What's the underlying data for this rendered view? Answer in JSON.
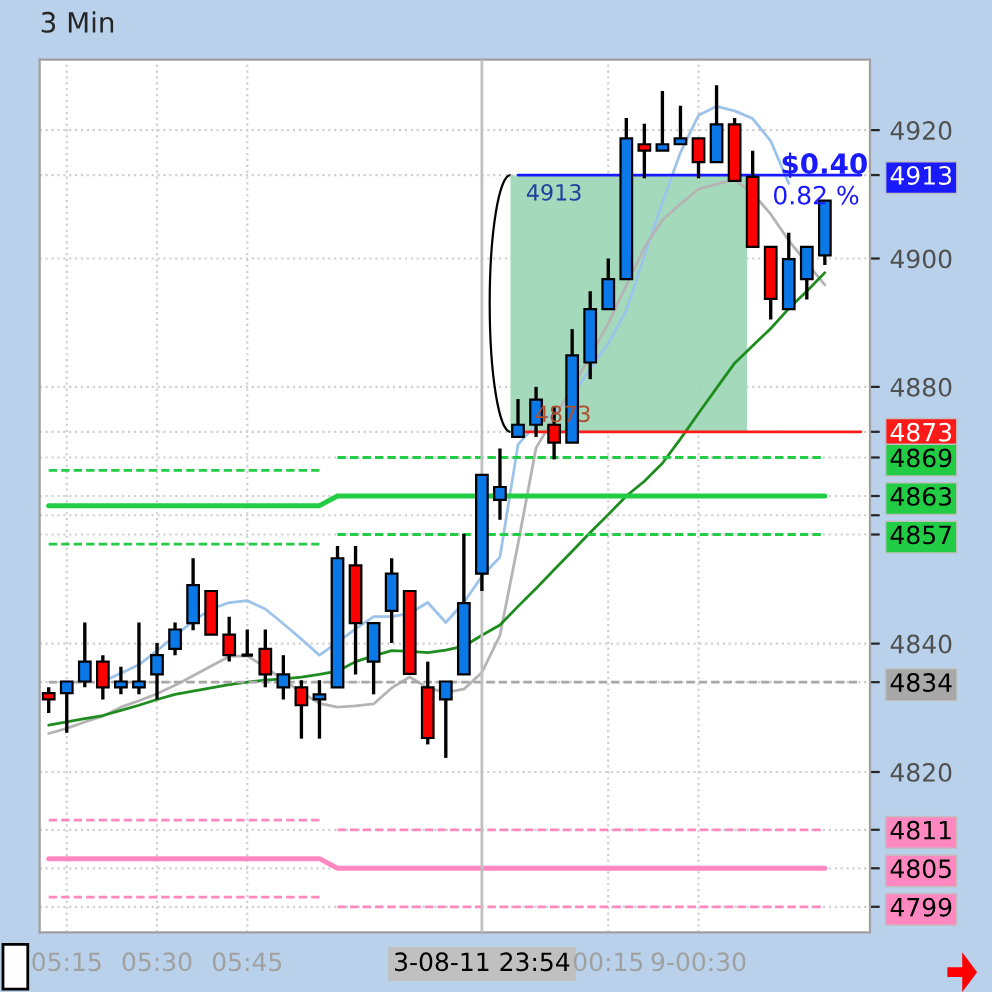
{
  "chart_data": {
    "type": "candlestick",
    "title": "3 Min",
    "categories": [
      null,
      "05:15",
      null,
      null,
      null,
      null,
      "05:30",
      null,
      null,
      null,
      null,
      "05:45",
      null,
      null,
      null,
      null,
      null,
      null,
      null,
      null,
      null,
      null,
      null,
      null,
      "3-08-11 23:54",
      null,
      null,
      null,
      null,
      null,
      null,
      "00:15",
      null,
      null,
      null,
      null,
      "9-00:30",
      null,
      null,
      null,
      null,
      null,
      null,
      null,
      null,
      null
    ],
    "ohlc": [
      [
        4832.3,
        4833.2,
        4829.2,
        4831.3
      ],
      [
        4832.3,
        4834.1,
        4826.1,
        4834.1
      ],
      [
        4834.1,
        4843.3,
        4833.2,
        4837.2
      ],
      [
        4837.2,
        4838.2,
        4831.3,
        4833.2
      ],
      [
        4833.2,
        4836.4,
        4832.1,
        4834.1
      ],
      [
        4833.2,
        4843.3,
        4832.1,
        4834.1
      ],
      [
        4835.2,
        4840.1,
        4831.3,
        4838.2
      ],
      [
        4839.2,
        4843.3,
        4838.2,
        4842.2
      ],
      [
        4843.2,
        4853.3,
        4842.1,
        4849.1
      ],
      [
        4848.2,
        4848.2,
        4841.4,
        4841.4
      ],
      [
        4841.4,
        4844.2,
        4837.2,
        4838.2
      ],
      [
        4838.2,
        4842.2,
        4838.2,
        4838.2
      ],
      [
        4839.2,
        4842.2,
        4833.2,
        4835.2
      ],
      [
        4833.2,
        4838.2,
        4831.3,
        4835.2
      ],
      [
        4833.2,
        4834.3,
        4825.2,
        4830.4
      ],
      [
        4831.3,
        4834.3,
        4825.2,
        4832.1
      ],
      [
        4833.2,
        4855.2,
        4833.2,
        4853.3
      ],
      [
        4852.2,
        4855.2,
        4835.2,
        4843.2
      ],
      [
        4837.2,
        4843.2,
        4832.1,
        4843.2
      ],
      [
        4845.1,
        4853.3,
        4840.1,
        4850.9
      ],
      [
        4848.2,
        4848.2,
        4835.3,
        4835.3
      ],
      [
        4833.2,
        4837.2,
        4824.3,
        4825.3
      ],
      [
        4831.3,
        4834.1,
        4822.2,
        4834.1
      ],
      [
        4835.2,
        4857.1,
        4835.2,
        4846.3
      ],
      [
        4850.9,
        4866.3,
        4848.2,
        4866.3
      ],
      [
        4862.4,
        4870.4,
        4859.3,
        4864.4
      ],
      [
        4872.2,
        4878.1,
        4872.2,
        4874.1
      ],
      [
        4874.1,
        4880.0,
        4872.2,
        4878.0
      ],
      [
        4874.1,
        4877.0,
        4868.7,
        4871.3
      ],
      [
        4871.3,
        4889.0,
        4871.3,
        4884.9
      ],
      [
        4883.8,
        4894.9,
        4881.2,
        4892.1
      ],
      [
        4892.1,
        4900.0,
        4892.1,
        4896.8
      ],
      [
        4896.8,
        4921.9,
        4896.8,
        4918.7
      ],
      [
        4917.8,
        4921.0,
        4912.5,
        4916.8
      ],
      [
        4916.8,
        4926.1,
        4916.8,
        4917.8
      ],
      [
        4917.8,
        4923.8,
        4917.8,
        4918.7
      ],
      [
        4918.7,
        4918.7,
        4912.5,
        4915.0
      ],
      [
        4915.0,
        4927.0,
        4915.0,
        4920.9
      ],
      [
        4920.9,
        4921.9,
        4912.1,
        4912.1
      ],
      [
        4912.7,
        4916.8,
        4901.8,
        4901.8
      ],
      [
        4901.8,
        4901.8,
        4890.5,
        4893.7
      ],
      [
        4892.1,
        4904.0,
        4892.1,
        4899.9
      ],
      [
        4896.8,
        4901.8,
        4893.6,
        4901.8
      ],
      [
        4900.5,
        4909.0,
        4899.0,
        4909.0
      ],
      null,
      null
    ],
    "colors": [
      "#ff0000",
      "#0a78e6",
      "#0a78e6",
      "#ff0000",
      "#0a78e6",
      "#0a78e6",
      "#0a78e6",
      "#0a78e6",
      "#0a78e6",
      "#ff0000",
      "#ff0000",
      "#000000",
      "#ff0000",
      "#0a78e6",
      "#ff0000",
      "#0a78e6",
      "#0a78e6",
      "#ff0000",
      "#0a78e6",
      "#0a78e6",
      "#ff0000",
      "#ff0000",
      "#0a78e6",
      "#0a78e6",
      "#0a78e6",
      "#0a78e6",
      "#0a78e6",
      "#0a78e6",
      "#ff0000",
      "#0a78e6",
      "#0a78e6",
      "#0a78e6",
      "#0a78e6",
      "#ff0000",
      "#0a78e6",
      "#0a78e6",
      "#ff0000",
      "#0a78e6",
      "#ff0000",
      "#ff0000",
      "#ff0000",
      "#0a78e6",
      "#0a78e6",
      "#0a78e6",
      null,
      null
    ],
    "series": [
      {
        "type": "line",
        "color": "#9cc3ea",
        "values": [
          null,
          null,
          null,
          4834.1,
          4835.4,
          4836.7,
          4838.9,
          4841.2,
          4843.5,
          4845.4,
          4846.4,
          4846.7,
          4845.4,
          4843.1,
          4840.7,
          4838.2,
          4840.2,
          4842.3,
          4844.2,
          4844.2,
          4844.7,
          4846.4,
          4843.3,
          4846.4,
          4850.5,
          4853.5,
          4871.0,
          4874.2,
          4875.9,
          4878.6,
          4882.8,
          4886.8,
          4891.9,
          4900.4,
          4908.7,
          4916.5,
          4922.3,
          4923.7,
          4923.0,
          4921.8,
          4918.3,
          4911.7,
          null,
          null,
          null,
          null
        ]
      },
      {
        "type": "line",
        "color": "#b4b4b4",
        "values": [
          4826.0,
          4826.8,
          4827.8,
          4828.7,
          4830.1,
          4831.1,
          4832.2,
          4833.5,
          4835.0,
          4836.5,
          4838.0,
          4838.1,
          4836.3,
          4834.4,
          4832.4,
          4830.7,
          4830.1,
          4830.3,
          4830.6,
          4833.1,
          4834.8,
          4833.1,
          4832.4,
          4832.9,
          4835.5,
          4841.3,
          4855.5,
          4870.5,
          4875.2,
          4880.0,
          4884.7,
          4889.9,
          4895.8,
          4901.7,
          4906.0,
          4908.5,
          4910.8,
          4911.6,
          4912.3,
          4910.2,
          4906.9,
          4902.8,
          4899.3,
          4895.9,
          null,
          null
        ]
      },
      {
        "type": "line",
        "color": "#1e8c1e",
        "values": [
          4827.3,
          4827.8,
          4828.3,
          4828.8,
          4829.6,
          4830.4,
          4831.3,
          4832.1,
          4832.6,
          4833.1,
          4833.6,
          4834.0,
          4834.3,
          4834.5,
          4834.8,
          4835.2,
          4835.7,
          4837.2,
          4838.1,
          4838.9,
          4838.8,
          4838.6,
          4839.0,
          4839.6,
          4841.3,
          4842.9,
          4845.8,
          4848.6,
          4851.5,
          4854.4,
          4857.3,
          4860.1,
          4863.0,
          4865.3,
          4868.1,
          4871.9,
          4875.9,
          4879.8,
          4883.7,
          4886.4,
          4889.1,
          4892.2,
          4894.9,
          4897.8,
          null,
          null
        ]
      },
      {
        "type": "line",
        "color": "#22cc44",
        "line_style": "dashed",
        "values": [
          4867,
          4867,
          4867,
          4867,
          4867,
          4867,
          4867,
          4867,
          4867,
          4867,
          4867,
          4867,
          4867,
          4867,
          4867,
          4867,
          null,
          null,
          null,
          null,
          null,
          null,
          null,
          null,
          null,
          null,
          null,
          null,
          null,
          null,
          null,
          null,
          null,
          null,
          null,
          null,
          null,
          null,
          null,
          null,
          null,
          null,
          null,
          null,
          null,
          null
        ]
      },
      {
        "type": "line",
        "color": "#22cc44",
        "line_style": "dashed",
        "values": [
          null,
          null,
          null,
          null,
          null,
          null,
          null,
          null,
          null,
          null,
          null,
          null,
          null,
          null,
          null,
          null,
          4869,
          4869,
          4869,
          4869,
          4869,
          4869,
          4869,
          4869,
          4869,
          4869,
          4869,
          4869,
          4869,
          4869,
          4869,
          4869,
          4869,
          4869,
          4869,
          4869,
          4869,
          4869,
          4869,
          4869,
          4869,
          4869,
          4869,
          4869,
          null,
          null
        ]
      },
      {
        "type": "line",
        "color": "#22cc44",
        "values": [
          4861.5,
          4861.5,
          4861.5,
          4861.5,
          4861.5,
          4861.5,
          4861.5,
          4861.5,
          4861.5,
          4861.5,
          4861.5,
          4861.5,
          4861.5,
          4861.5,
          4861.5,
          4861.5,
          4863,
          4863,
          4863,
          4863,
          4863,
          4863,
          4863,
          4863,
          4863,
          4863,
          4863,
          4863,
          4863,
          4863,
          4863,
          4863,
          4863,
          4863,
          4863,
          4863,
          4863,
          4863,
          4863,
          4863,
          4863,
          4863,
          4863,
          4863,
          null,
          null
        ]
      },
      {
        "type": "line",
        "color": "#22cc44",
        "line_style": "dashed",
        "values": [
          4855.5,
          4855.5,
          4855.5,
          4855.5,
          4855.5,
          4855.5,
          4855.5,
          4855.5,
          4855.5,
          4855.5,
          4855.5,
          4855.5,
          4855.5,
          4855.5,
          4855.5,
          4855.5,
          null,
          null,
          null,
          null,
          null,
          null,
          null,
          null,
          null,
          null,
          null,
          null,
          null,
          null,
          null,
          null,
          null,
          null,
          null,
          null,
          null,
          null,
          null,
          null,
          null,
          null,
          null,
          null,
          null,
          null
        ]
      },
      {
        "type": "line",
        "color": "#22cc44",
        "line_style": "dashed",
        "values": [
          null,
          null,
          null,
          null,
          null,
          null,
          null,
          null,
          null,
          null,
          null,
          null,
          null,
          null,
          null,
          null,
          4857,
          4857,
          4857,
          4857,
          4857,
          4857,
          4857,
          4857,
          4857,
          4857,
          4857,
          4857,
          4857,
          4857,
          4857,
          4857,
          4857,
          4857,
          4857,
          4857,
          4857,
          4857,
          4857,
          4857,
          4857,
          4857,
          4857,
          4857,
          null,
          null
        ]
      },
      {
        "type": "line",
        "color": "#a8a8a8",
        "line_style": "dashed",
        "values": [
          4834,
          4834,
          4834,
          4834,
          4834,
          4834,
          4834,
          4834,
          4834,
          4834,
          4834,
          4834,
          4834,
          4834,
          4834,
          4834,
          4834,
          4834,
          4834,
          4834,
          4834,
          4834,
          4834,
          4834,
          4834,
          4834,
          4834,
          4834,
          4834,
          4834,
          4834,
          4834,
          4834,
          4834,
          4834,
          4834,
          4834,
          4834,
          4834,
          4834,
          4834,
          4834,
          4834,
          4834,
          4834,
          4834
        ]
      },
      {
        "type": "line",
        "color": "#ff88c0",
        "line_style": "dashed",
        "values": [
          4812.5,
          4812.5,
          4812.5,
          4812.5,
          4812.5,
          4812.5,
          4812.5,
          4812.5,
          4812.5,
          4812.5,
          4812.5,
          4812.5,
          4812.5,
          4812.5,
          4812.5,
          4812.5,
          null,
          null,
          null,
          null,
          null,
          null,
          null,
          null,
          null,
          null,
          null,
          null,
          null,
          null,
          null,
          null,
          null,
          null,
          null,
          null,
          null,
          null,
          null,
          null,
          null,
          null,
          null,
          null,
          null,
          null
        ]
      },
      {
        "type": "line",
        "color": "#ff88c0",
        "line_style": "dashed",
        "values": [
          null,
          null,
          null,
          null,
          null,
          null,
          null,
          null,
          null,
          null,
          null,
          null,
          null,
          null,
          null,
          null,
          4811,
          4811,
          4811,
          4811,
          4811,
          4811,
          4811,
          4811,
          4811,
          4811,
          4811,
          4811,
          4811,
          4811,
          4811,
          4811,
          4811,
          4811,
          4811,
          4811,
          4811,
          4811,
          4811,
          4811,
          4811,
          4811,
          4811,
          4811,
          null,
          null
        ]
      },
      {
        "type": "line",
        "color": "#ff88c0",
        "values": [
          4806.5,
          4806.5,
          4806.5,
          4806.5,
          4806.5,
          4806.5,
          4806.5,
          4806.5,
          4806.5,
          4806.5,
          4806.5,
          4806.5,
          4806.5,
          4806.5,
          4806.5,
          4806.5,
          4805,
          4805,
          4805,
          4805,
          4805,
          4805,
          4805,
          4805,
          4805,
          4805,
          4805,
          4805,
          4805,
          4805,
          4805,
          4805,
          4805,
          4805,
          4805,
          4805,
          4805,
          4805,
          4805,
          4805,
          4805,
          4805,
          4805,
          4805,
          null,
          null
        ]
      },
      {
        "type": "line",
        "color": "#ff88c0",
        "line_style": "dashed",
        "values": [
          4800.5,
          4800.5,
          4800.5,
          4800.5,
          4800.5,
          4800.5,
          4800.5,
          4800.5,
          4800.5,
          4800.5,
          4800.5,
          4800.5,
          4800.5,
          4800.5,
          4800.5,
          4800.5,
          null,
          null,
          null,
          null,
          null,
          null,
          null,
          null,
          null,
          null,
          null,
          null,
          null,
          null,
          null,
          null,
          null,
          null,
          null,
          null,
          null,
          null,
          null,
          null,
          null,
          null,
          null,
          null,
          null,
          null
        ]
      },
      {
        "type": "line",
        "color": "#ff88c0",
        "line_style": "dashed",
        "values": [
          null,
          null,
          null,
          null,
          null,
          null,
          null,
          null,
          null,
          null,
          null,
          null,
          null,
          null,
          null,
          null,
          4799,
          4799,
          4799,
          4799,
          4799,
          4799,
          4799,
          4799,
          4799,
          4799,
          4799,
          4799,
          4799,
          4799,
          4799,
          4799,
          4799,
          4799,
          4799,
          4799,
          4799,
          4799,
          4799,
          4799,
          4799,
          4799,
          4799,
          4799,
          null,
          null
        ]
      },
      {
        "type": "line",
        "color": "#1a1aff",
        "values": [
          null,
          null,
          null,
          null,
          null,
          null,
          null,
          null,
          null,
          null,
          null,
          null,
          null,
          null,
          null,
          null,
          null,
          null,
          null,
          null,
          null,
          null,
          null,
          null,
          null,
          null,
          4913,
          4913,
          4913,
          4913,
          4913,
          4913,
          4913,
          4913,
          4913,
          4913,
          4913,
          4913,
          4913,
          4913,
          4913,
          4913,
          4913,
          4913,
          4913,
          4913
        ]
      },
      {
        "type": "line",
        "color": "#ff1a1a",
        "values": [
          null,
          null,
          null,
          null,
          null,
          null,
          null,
          null,
          null,
          null,
          null,
          null,
          null,
          null,
          null,
          null,
          null,
          null,
          null,
          null,
          null,
          null,
          null,
          null,
          null,
          null,
          4873,
          4873,
          4873,
          4873,
          4873,
          4873,
          4873,
          4873,
          4873,
          4873,
          4873,
          4873,
          4873,
          4873,
          4873,
          4873,
          4873,
          4873,
          4873,
          4873
        ]
      }
    ],
    "ylim": [
      4795,
      4931
    ],
    "yticks": [
      4820,
      4840,
      {
        "value": 4860,
        "label": null
      },
      4880,
      4900,
      4920,
      {
        "value": 4913,
        "label": "4913"
      },
      {
        "value": 4873,
        "label": "4873"
      },
      {
        "value": 4869,
        "label": "4869"
      },
      {
        "value": 4863,
        "label": "4863"
      },
      {
        "value": 4857,
        "label": "4857"
      },
      {
        "value": 4834,
        "label": "4834"
      },
      {
        "value": 4811,
        "label": "4811"
      },
      {
        "value": 4805,
        "label": "4805"
      },
      {
        "value": 4799,
        "label": "4799"
      }
    ],
    "ref_lines": [
      {
        "axis": "x",
        "value": "3-08-11 23:54",
        "color": "#c0c0c0"
      }
    ],
    "annotations": [
      {
        "text": "4913",
        "y": 4913
      },
      {
        "text": "4873",
        "y": 4873
      },
      "$0.40",
      "0.82 %"
    ],
    "grid": true
  }
}
